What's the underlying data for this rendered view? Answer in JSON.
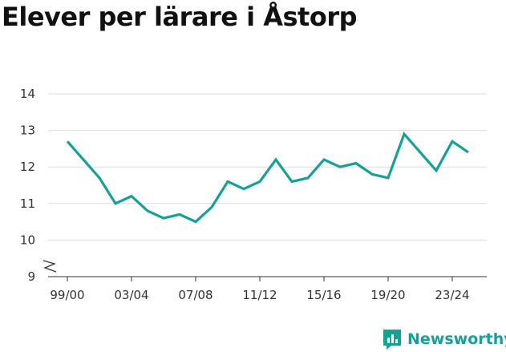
{
  "title": "Elever per lärare i Åstorp",
  "brand": {
    "name": "Newsworthy",
    "color": "#16a096",
    "icon": "newsworthy-logo-icon"
  },
  "chart_data": {
    "type": "line",
    "title": "Elever per lärare i Åstorp",
    "xlabel": "",
    "ylabel": "",
    "x": [
      "99/00",
      "00/01",
      "01/02",
      "02/03",
      "03/04",
      "04/05",
      "05/06",
      "06/07",
      "07/08",
      "08/09",
      "09/10",
      "10/11",
      "11/12",
      "12/13",
      "13/14",
      "14/15",
      "15/16",
      "16/17",
      "17/18",
      "18/19",
      "19/20",
      "20/21",
      "21/22",
      "22/23",
      "23/24",
      "24/25"
    ],
    "x_tick_labels": [
      "99/00",
      "03/04",
      "07/08",
      "11/12",
      "15/16",
      "19/20",
      "23/24"
    ],
    "y_ticks": [
      9,
      10,
      11,
      12,
      13,
      14
    ],
    "ylim": [
      9,
      14
    ],
    "y_axis_break": true,
    "grid": true,
    "series": [
      {
        "values": [
          12.7,
          12.2,
          11.7,
          11.0,
          11.2,
          10.8,
          10.6,
          10.7,
          10.5,
          10.9,
          11.6,
          11.4,
          11.6,
          12.2,
          11.6,
          11.7,
          12.2,
          12.0,
          12.1,
          11.8,
          11.7,
          12.9,
          12.4,
          11.9,
          12.7,
          12.4
        ],
        "color": "#16a096"
      }
    ]
  }
}
